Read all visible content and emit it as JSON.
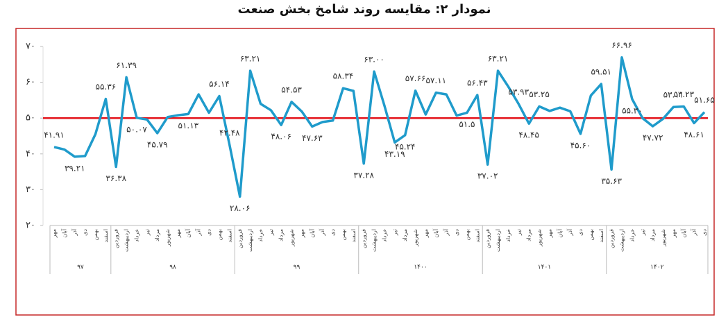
{
  "chart_data": {
    "type": "line",
    "title": "نمودار ۲: مقایسه روند شامخ بخش صنعت",
    "groups": [
      {
        "name": "۹۷",
        "categories": [
          "مهر",
          "آبان",
          "آذر",
          "دی",
          "بهمن",
          "اسفند"
        ]
      },
      {
        "name": "۹۸",
        "categories": [
          "فروردین",
          "اردیبهشت",
          "خرداد",
          "تیر",
          "مرداد",
          "شهریور",
          "مهر",
          "آبان",
          "آذر",
          "دی",
          "بهمن",
          "اسفند"
        ]
      },
      {
        "name": "۹۹",
        "categories": [
          "فروردین",
          "اردیبهشت",
          "خرداد",
          "تیر",
          "مرداد",
          "شهریور",
          "مهر",
          "آبان",
          "آذر",
          "دی",
          "بهمن",
          "اسفند"
        ]
      },
      {
        "name": "۱۴۰۰",
        "categories": [
          "فروردین",
          "اردیبهشت",
          "خرداد",
          "تیر",
          "مرداد",
          "شهریور",
          "مهر",
          "آبان",
          "آذر",
          "دی",
          "بهمن",
          "اسفند"
        ]
      },
      {
        "name": "۱۴۰۱",
        "categories": [
          "فروردین",
          "اردیبهشت",
          "خرداد",
          "تیر",
          "مرداد",
          "شهریور",
          "مهر",
          "آبان",
          "آذر",
          "دی",
          "بهمن",
          "اسفند"
        ]
      },
      {
        "name": "۱۴۰۲",
        "categories": [
          "فروردین",
          "اردیبهشت",
          "خرداد",
          "تیر",
          "مرداد",
          "شهریور",
          "مهر",
          "آبان",
          "آذر",
          "دی"
        ]
      }
    ],
    "series": [
      {
        "color": "#1f9bcb",
        "values": [
          41.91,
          41.2,
          39.21,
          39.4,
          45.5,
          55.36,
          36.38,
          61.39,
          50.07,
          49.6,
          45.79,
          50.3,
          50.8,
          51.13,
          56.6,
          51.5,
          56.14,
          42.48,
          28.06,
          63.21,
          54.0,
          52.2,
          48.06,
          54.53,
          51.8,
          47.63,
          48.9,
          49.3,
          58.34,
          57.6,
          37.28,
          63.0,
          53.5,
          43.19,
          45.24,
          57.66,
          51.0,
          57.11,
          56.6,
          50.7,
          51.5,
          56.43,
          37.02,
          63.21,
          58.8,
          53.93,
          48.45,
          53.25,
          52.0,
          52.9,
          51.9,
          45.6,
          56.3,
          59.51,
          35.63,
          66.96,
          55.3,
          50.0,
          47.72,
          49.8,
          53.11,
          53.23,
          48.61,
          51.65
        ],
        "value_labels": [
          "۴۱.۹۱",
          null,
          "۳۹.۲۱",
          null,
          null,
          "۵۵.۳۶",
          "۳۶.۳۸",
          "۶۱.۳۹",
          "۵۰.۰۷",
          null,
          "۴۵.۷۹",
          null,
          null,
          "۵۱.۱۳",
          null,
          null,
          "۵۶.۱۴",
          "۴۲.۴۸",
          "۲۸.۰۶",
          "۶۳.۲۱",
          null,
          null,
          "۴۸.۰۶",
          "۵۴.۵۳",
          null,
          "۴۷.۶۳",
          null,
          null,
          "۵۸.۳۴",
          null,
          "۳۷.۲۸",
          "۶۳.۰۰",
          null,
          "۴۳.۱۹",
          "۴۵.۲۴",
          "۵۷.۶۶",
          null,
          "۵۷.۱۱",
          null,
          null,
          "۵۱.۵",
          "۵۶.۴۳",
          "۳۷.۰۲",
          "۶۳.۲۱",
          null,
          "۵۳.۹۳",
          "۴۸.۴۵",
          "۵۳.۲۵",
          null,
          null,
          null,
          "۴۵.۶۰",
          null,
          "۵۹.۵۱",
          "۳۵.۶۳",
          "۶۶.۹۶",
          "۵۵.۳۰",
          null,
          "۴۷.۷۲",
          null,
          "۵۳.۱۱",
          "۵۳.۲۳",
          "۴۸.۶۱",
          "۵۱.۶۵"
        ]
      }
    ],
    "ylim": [
      20,
      70
    ],
    "yticks": [
      {
        "value": 20,
        "label": "۲۰"
      },
      {
        "value": 30,
        "label": "۳۰"
      },
      {
        "value": 40,
        "label": "۴۰"
      },
      {
        "value": 50,
        "label": "۵۰"
      },
      {
        "value": 60,
        "label": "۶۰"
      },
      {
        "value": 70,
        "label": "۷۰"
      }
    ],
    "reference_line": {
      "value": 50,
      "color": "#e3131b"
    }
  }
}
